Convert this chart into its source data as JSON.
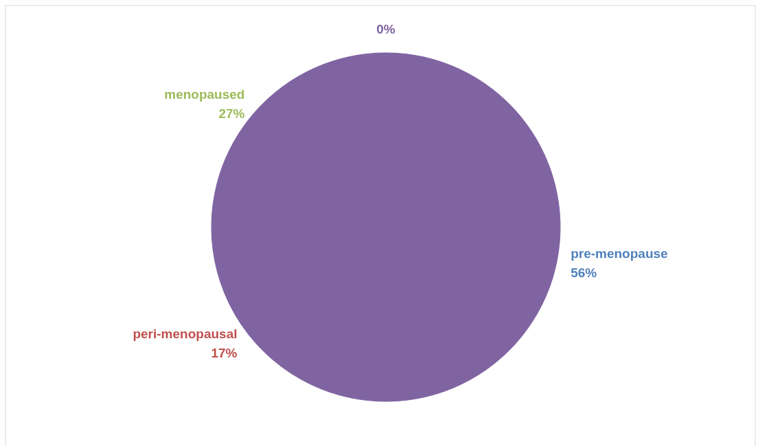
{
  "chart_data": {
    "type": "pie",
    "categories": [
      "pre-menopause",
      "peri-menopausal",
      "menopaused",
      null
    ],
    "values": [
      56,
      17,
      27,
      0
    ],
    "colors": [
      "#8064a2",
      "#8064a2",
      "#8064a2",
      "#8064a2"
    ],
    "value_labels": [
      "56%",
      "17%",
      "27%",
      "0%"
    ]
  }
}
